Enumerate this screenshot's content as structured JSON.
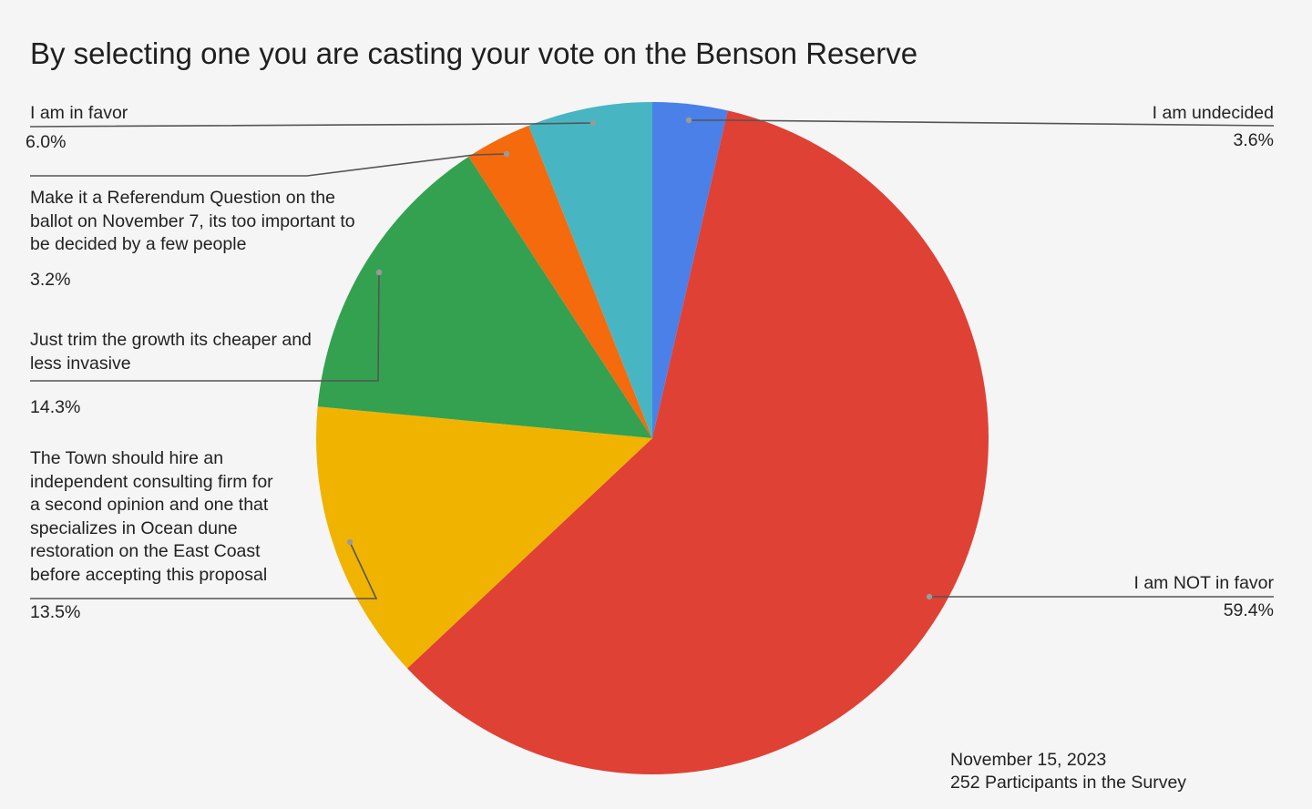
{
  "chart_data": {
    "type": "pie",
    "title": "By selecting one you are casting your vote on the Benson Reserve",
    "slices": [
      {
        "label": "I am undecided",
        "value": 3.6,
        "value_label": "3.6%",
        "color": "#4a80e8"
      },
      {
        "label": "I am NOT in favor",
        "value": 59.4,
        "value_label": "59.4%",
        "color": "#df4135"
      },
      {
        "label": "The Town should hire an independent consulting firm for a second opinion and one that specializes in Ocean dune restoration on the East Coast before accepting this proposal",
        "label_lines": [
          "The Town should hire an",
          "independent consulting firm for",
          "a second opinion and one that",
          "specializes in Ocean dune",
          "restoration on the East Coast",
          "before accepting this proposal"
        ],
        "value": 13.5,
        "value_label": "13.5%",
        "color": "#f0b400"
      },
      {
        "label": "Just trim the growth its cheaper and less invasive",
        "label_lines": [
          "Just trim the growth its cheaper and",
          "less invasive"
        ],
        "value": 14.3,
        "value_label": "14.3%",
        "color": "#34a150"
      },
      {
        "label": "Make it a Referendum Question on the ballot on November 7, its too important to be decided by a few people",
        "label_lines": [
          "Make it a Referendum Question on the",
          "ballot on November 7, its too important to",
          "be decided by a few people"
        ],
        "value": 3.2,
        "value_label": "3.2%",
        "color": "#f46a0c"
      },
      {
        "label": "I am in favor",
        "value": 6.0,
        "value_label": "6.0%",
        "color": "#47b6c2"
      }
    ],
    "start_angle_deg": 0,
    "direction": "clockwise",
    "legend": "none"
  },
  "footnote": {
    "date": "November 15, 2023",
    "participants": "252 Participants in the Survey"
  }
}
